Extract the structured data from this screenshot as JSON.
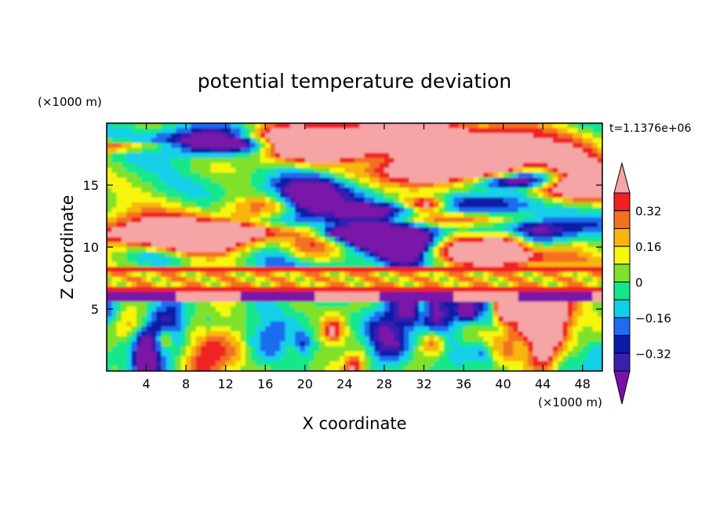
{
  "chart_data": {
    "type": "heatmap",
    "title": "potential temperature deviation",
    "xlabel": "X coordinate",
    "ylabel": "Z coordinate",
    "x_unit": "(×1000 m)",
    "y_unit": "(×1000 m)",
    "time_label": "t=1.1376e+06",
    "xlim": [
      0,
      50
    ],
    "ylim": [
      0,
      20
    ],
    "x_ticks": [
      4,
      8,
      12,
      16,
      20,
      24,
      28,
      32,
      36,
      40,
      44,
      48
    ],
    "y_ticks": [
      5,
      10,
      15
    ],
    "colorbar": {
      "levels": [
        -0.4,
        -0.32,
        -0.24,
        -0.16,
        -0.08,
        0,
        0.08,
        0.16,
        0.24,
        0.32,
        0.4
      ],
      "labeled_levels": [
        "0.32",
        "0.16",
        "0",
        "−0.16",
        "−0.32"
      ],
      "labeled_values": [
        0.32,
        0.16,
        0,
        -0.16,
        -0.32
      ],
      "colors": [
        "#7a12a8",
        "#3a1fb0",
        "#0a1ca8",
        "#1f6cf0",
        "#12cfe8",
        "#12e88a",
        "#7fe12a",
        "#f6f60e",
        "#f7b50e",
        "#f47020",
        "#f02020",
        "#f5a5a5"
      ],
      "extends": "both"
    },
    "layers_z": [
      {
        "z_range": [
          17,
          20
        ],
        "dominant": "mixed purple / pink bands"
      },
      {
        "z_range": [
          8.5,
          17
        ],
        "dominant": "purple and pink bands with sharp fronts"
      },
      {
        "z_range": [
          6.5,
          8.5
        ],
        "dominant": "yellow / green layer with red boundaries"
      },
      {
        "z_range": [
          5.5,
          6.5
        ],
        "dominant": "purple domes over pink"
      },
      {
        "z_range": [
          0,
          5.5
        ],
        "dominant": "turbulent mixed colors"
      }
    ]
  }
}
